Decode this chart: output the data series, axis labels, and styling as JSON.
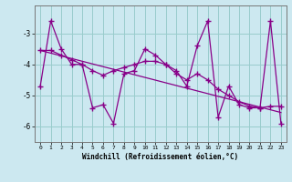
{
  "xlabel": "Windchill (Refroidissement éolien,°C)",
  "bg_color": "#cce8f0",
  "line_color": "#880088",
  "grid_color": "#99cccc",
  "hours": [
    0,
    1,
    2,
    3,
    4,
    5,
    6,
    7,
    8,
    9,
    10,
    11,
    12,
    13,
    14,
    15,
    16,
    17,
    18,
    19,
    20,
    21,
    22,
    23
  ],
  "windchill": [
    -4.7,
    -2.6,
    -3.5,
    -4.0,
    -4.0,
    -5.4,
    -5.3,
    -5.9,
    -4.3,
    -4.2,
    -3.5,
    -3.7,
    -4.0,
    -4.2,
    -4.7,
    -3.4,
    -2.6,
    -5.7,
    -4.7,
    -5.3,
    -5.4,
    -5.4,
    -2.6,
    -5.9
  ],
  "smooth": [
    -3.55,
    -3.55,
    -3.7,
    -3.85,
    -4.0,
    -4.2,
    -4.35,
    -4.2,
    -4.1,
    -4.0,
    -3.9,
    -3.9,
    -4.0,
    -4.3,
    -4.5,
    -4.3,
    -4.5,
    -4.8,
    -5.0,
    -5.2,
    -5.35,
    -5.4,
    -5.35,
    -5.35
  ],
  "trend": [
    -3.55,
    -5.55
  ],
  "ylim": [
    -6.5,
    -2.1
  ],
  "yticks": [
    -6,
    -5,
    -4,
    -3
  ],
  "xlim": [
    -0.5,
    23.5
  ]
}
